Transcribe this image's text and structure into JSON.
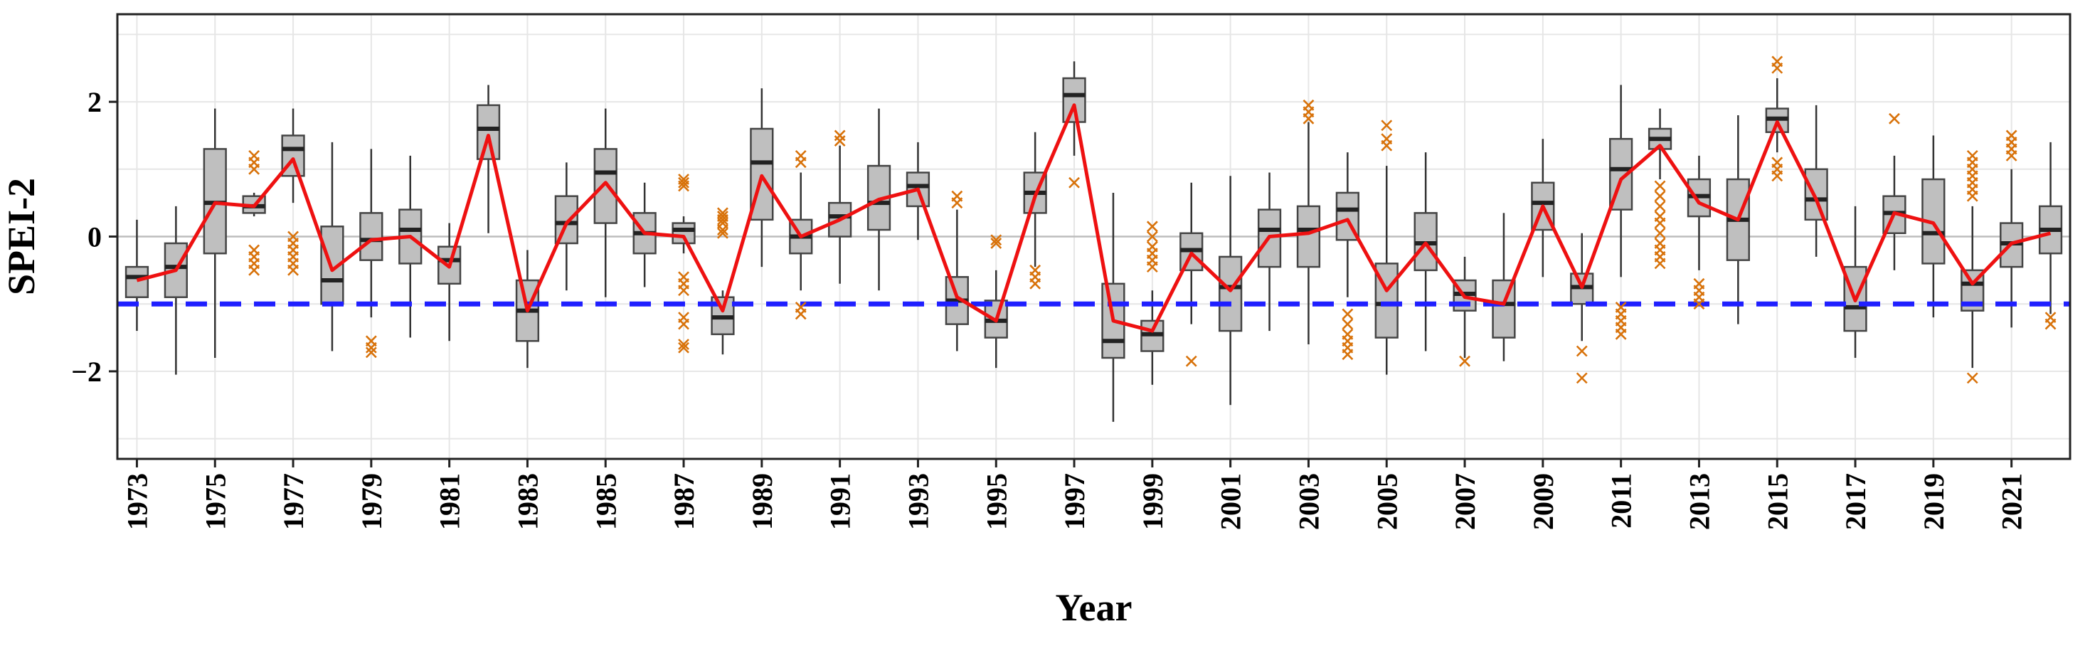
{
  "chart_data": {
    "type": "boxplot",
    "title": "",
    "xlabel": "Year",
    "ylabel": "SPEI-2",
    "ylim": [
      -3.3,
      3.3
    ],
    "yticks": [
      -2,
      0,
      2
    ],
    "ytick_labels": [
      "−2",
      "0",
      "2"
    ],
    "xticks": [
      1973,
      1975,
      1977,
      1979,
      1981,
      1983,
      1985,
      1987,
      1989,
      1991,
      1993,
      1995,
      1997,
      1999,
      2001,
      2003,
      2005,
      2007,
      2009,
      2011,
      2013,
      2015,
      2017,
      2019,
      2021
    ],
    "reference_line": {
      "value": -1,
      "style": "dashed",
      "color": "#1f1fff"
    },
    "colors": {
      "box_fill": "#bfbfbf",
      "box_edge": "#444444",
      "median": "#222222",
      "whisker": "#333333",
      "outlier": "#d8720a",
      "mean_line": "#ee1111",
      "grid": "#e6e6e6",
      "zero_line": "#bdbdbd"
    },
    "series": [
      {
        "name": "boxes",
        "values": [
          {
            "year": 1973,
            "min": -1.4,
            "q1": -0.9,
            "median": -0.6,
            "q3": -0.45,
            "max": 0.25,
            "outliers": []
          },
          {
            "year": 1974,
            "min": -2.05,
            "q1": -0.9,
            "median": -0.45,
            "q3": -0.1,
            "max": 0.45,
            "outliers": []
          },
          {
            "year": 1975,
            "min": -1.8,
            "q1": -0.25,
            "median": 0.5,
            "q3": 1.3,
            "max": 1.9,
            "outliers": []
          },
          {
            "year": 1976,
            "min": 0.3,
            "q1": 0.35,
            "median": 0.45,
            "q3": 0.6,
            "max": 0.65,
            "outliers": [
              1.2,
              1.1,
              1.0,
              -0.2,
              -0.3,
              -0.4,
              -0.5
            ]
          },
          {
            "year": 1977,
            "min": 0.5,
            "q1": 0.9,
            "median": 1.3,
            "q3": 1.5,
            "max": 1.9,
            "outliers": [
              0.0,
              -0.1,
              -0.2,
              -0.3,
              -0.4,
              -0.5
            ]
          },
          {
            "year": 1978,
            "min": -1.7,
            "q1": -1.0,
            "median": -0.65,
            "q3": 0.15,
            "max": 1.4,
            "outliers": []
          },
          {
            "year": 1979,
            "min": -1.2,
            "q1": -0.35,
            "median": -0.05,
            "q3": 0.35,
            "max": 1.3,
            "outliers": [
              -1.55,
              -1.65,
              -1.72
            ]
          },
          {
            "year": 1980,
            "min": -1.5,
            "q1": -0.4,
            "median": 0.1,
            "q3": 0.4,
            "max": 1.2,
            "outliers": []
          },
          {
            "year": 1981,
            "min": -1.55,
            "q1": -0.7,
            "median": -0.35,
            "q3": -0.15,
            "max": 0.2,
            "outliers": []
          },
          {
            "year": 1982,
            "min": 0.05,
            "q1": 1.15,
            "median": 1.6,
            "q3": 1.95,
            "max": 2.25,
            "outliers": []
          },
          {
            "year": 1983,
            "min": -1.95,
            "q1": -1.55,
            "median": -1.1,
            "q3": -0.65,
            "max": -0.2,
            "outliers": []
          },
          {
            "year": 1984,
            "min": -0.8,
            "q1": -0.1,
            "median": 0.2,
            "q3": 0.6,
            "max": 1.1,
            "outliers": []
          },
          {
            "year": 1985,
            "min": -0.9,
            "q1": 0.2,
            "median": 0.95,
            "q3": 1.3,
            "max": 1.9,
            "outliers": []
          },
          {
            "year": 1986,
            "min": -0.75,
            "q1": -0.25,
            "median": 0.05,
            "q3": 0.35,
            "max": 0.8,
            "outliers": []
          },
          {
            "year": 1987,
            "min": -0.25,
            "q1": -0.1,
            "median": 0.1,
            "q3": 0.2,
            "max": 0.3,
            "outliers": [
              0.85,
              0.8,
              0.75,
              -0.6,
              -0.7,
              -0.8,
              -1.2,
              -1.3,
              -1.6,
              -1.65
            ]
          },
          {
            "year": 1988,
            "min": -1.75,
            "q1": -1.45,
            "median": -1.2,
            "q3": -0.9,
            "max": -0.8,
            "outliers": [
              0.35,
              0.3,
              0.25,
              0.2,
              0.1,
              0.05
            ]
          },
          {
            "year": 1989,
            "min": -0.45,
            "q1": 0.25,
            "median": 1.1,
            "q3": 1.6,
            "max": 2.2,
            "outliers": []
          },
          {
            "year": 1990,
            "min": -0.8,
            "q1": -0.25,
            "median": 0.0,
            "q3": 0.25,
            "max": 0.95,
            "outliers": [
              1.2,
              1.1,
              -1.05,
              -1.15
            ]
          },
          {
            "year": 1991,
            "min": -0.7,
            "q1": 0.0,
            "median": 0.3,
            "q3": 0.5,
            "max": 1.35,
            "outliers": [
              1.5,
              1.42
            ]
          },
          {
            "year": 1992,
            "min": -0.8,
            "q1": 0.1,
            "median": 0.5,
            "q3": 1.05,
            "max": 1.9,
            "outliers": []
          },
          {
            "year": 1993,
            "min": -0.05,
            "q1": 0.45,
            "median": 0.75,
            "q3": 0.95,
            "max": 1.4,
            "outliers": []
          },
          {
            "year": 1994,
            "min": -1.7,
            "q1": -1.3,
            "median": -0.95,
            "q3": -0.6,
            "max": 0.4,
            "outliers": [
              0.6,
              0.5
            ]
          },
          {
            "year": 1995,
            "min": -1.95,
            "q1": -1.5,
            "median": -1.25,
            "q3": -0.95,
            "max": -0.5,
            "outliers": [
              -0.05,
              -0.1
            ]
          },
          {
            "year": 1996,
            "min": -0.45,
            "q1": 0.35,
            "median": 0.65,
            "q3": 0.95,
            "max": 1.55,
            "outliers": [
              -0.5,
              -0.6,
              -0.7
            ]
          },
          {
            "year": 1997,
            "min": 1.2,
            "q1": 1.7,
            "median": 2.1,
            "q3": 2.35,
            "max": 2.6,
            "outliers": [
              0.8
            ]
          },
          {
            "year": 1998,
            "min": -2.75,
            "q1": -1.8,
            "median": -1.55,
            "q3": -0.7,
            "max": 0.65,
            "outliers": []
          },
          {
            "year": 1999,
            "min": -2.2,
            "q1": -1.7,
            "median": -1.45,
            "q3": -1.25,
            "max": -0.8,
            "outliers": [
              0.15,
              0.0,
              -0.15,
              -0.25,
              -0.35,
              -0.45
            ]
          },
          {
            "year": 2000,
            "min": -1.3,
            "q1": -0.5,
            "median": -0.2,
            "q3": 0.05,
            "max": 0.8,
            "outliers": [
              -1.85
            ]
          },
          {
            "year": 2001,
            "min": -2.5,
            "q1": -1.4,
            "median": -0.75,
            "q3": -0.3,
            "max": 0.9,
            "outliers": []
          },
          {
            "year": 2002,
            "min": -1.4,
            "q1": -0.45,
            "median": 0.1,
            "q3": 0.4,
            "max": 0.95,
            "outliers": []
          },
          {
            "year": 2003,
            "min": -1.6,
            "q1": -0.45,
            "median": 0.1,
            "q3": 0.45,
            "max": 1.7,
            "outliers": [
              1.95,
              1.85,
              1.75
            ]
          },
          {
            "year": 2004,
            "min": -0.9,
            "q1": -0.05,
            "median": 0.4,
            "q3": 0.65,
            "max": 1.25,
            "outliers": [
              -1.15,
              -1.3,
              -1.45,
              -1.55,
              -1.65,
              -1.75
            ]
          },
          {
            "year": 2005,
            "min": -2.05,
            "q1": -1.5,
            "median": -1.0,
            "q3": -0.4,
            "max": 1.05,
            "outliers": [
              1.65,
              1.45,
              1.35
            ]
          },
          {
            "year": 2006,
            "min": -1.7,
            "q1": -0.5,
            "median": -0.1,
            "q3": 0.35,
            "max": 1.25,
            "outliers": []
          },
          {
            "year": 2007,
            "min": -1.8,
            "q1": -1.1,
            "median": -0.85,
            "q3": -0.65,
            "max": -0.3,
            "outliers": [
              -1.85
            ]
          },
          {
            "year": 2008,
            "min": -1.85,
            "q1": -1.5,
            "median": -1.0,
            "q3": -0.65,
            "max": 0.35,
            "outliers": []
          },
          {
            "year": 2009,
            "min": -0.6,
            "q1": 0.1,
            "median": 0.5,
            "q3": 0.8,
            "max": 1.45,
            "outliers": []
          },
          {
            "year": 2010,
            "min": -1.55,
            "q1": -1.0,
            "median": -0.75,
            "q3": -0.55,
            "max": 0.05,
            "outliers": [
              -1.7,
              -2.1
            ]
          },
          {
            "year": 2011,
            "min": -0.6,
            "q1": 0.4,
            "median": 1.0,
            "q3": 1.45,
            "max": 2.25,
            "outliers": [
              -1.05,
              -1.15,
              -1.25,
              -1.35,
              -1.45
            ]
          },
          {
            "year": 2012,
            "min": 0.85,
            "q1": 1.3,
            "median": 1.45,
            "q3": 1.6,
            "max": 1.9,
            "outliers": [
              0.75,
              0.6,
              0.45,
              0.3,
              0.2,
              0.05,
              -0.1,
              -0.2,
              -0.3,
              -0.4
            ]
          },
          {
            "year": 2013,
            "min": -0.5,
            "q1": 0.3,
            "median": 0.6,
            "q3": 0.85,
            "max": 1.2,
            "outliers": [
              -0.7,
              -0.8,
              -0.9,
              -1.0
            ]
          },
          {
            "year": 2014,
            "min": -1.3,
            "q1": -0.35,
            "median": 0.25,
            "q3": 0.85,
            "max": 1.8,
            "outliers": []
          },
          {
            "year": 2015,
            "min": 1.25,
            "q1": 1.55,
            "median": 1.75,
            "q3": 1.9,
            "max": 2.35,
            "outliers": [
              2.6,
              2.5,
              1.1,
              1.0,
              0.9
            ]
          },
          {
            "year": 2016,
            "min": -0.3,
            "q1": 0.25,
            "median": 0.55,
            "q3": 1.0,
            "max": 1.95,
            "outliers": []
          },
          {
            "year": 2017,
            "min": -1.8,
            "q1": -1.4,
            "median": -1.05,
            "q3": -0.45,
            "max": 0.45,
            "outliers": []
          },
          {
            "year": 2018,
            "min": -0.5,
            "q1": 0.05,
            "median": 0.35,
            "q3": 0.6,
            "max": 1.2,
            "outliers": [
              1.75
            ]
          },
          {
            "year": 2019,
            "min": -1.2,
            "q1": -0.4,
            "median": 0.05,
            "q3": 0.85,
            "max": 1.5,
            "outliers": []
          },
          {
            "year": 2020,
            "min": -1.95,
            "q1": -1.1,
            "median": -0.7,
            "q3": -0.5,
            "max": 0.45,
            "outliers": [
              1.2,
              1.1,
              1.0,
              0.9,
              0.8,
              0.7,
              0.6,
              -2.1
            ]
          },
          {
            "year": 2021,
            "min": -1.35,
            "q1": -0.45,
            "median": -0.1,
            "q3": 0.2,
            "max": 1.0,
            "outliers": [
              1.5,
              1.4,
              1.3,
              1.2
            ]
          },
          {
            "year": 2022,
            "min": -1.15,
            "q1": -0.25,
            "median": 0.1,
            "q3": 0.45,
            "max": 1.4,
            "outliers": [
              -1.2,
              -1.3
            ]
          }
        ]
      },
      {
        "name": "mean",
        "values": [
          -0.65,
          -0.5,
          0.5,
          0.45,
          1.15,
          -0.5,
          -0.05,
          0.0,
          -0.45,
          1.5,
          -1.1,
          0.2,
          0.8,
          0.05,
          0.0,
          -1.1,
          0.9,
          0.0,
          0.25,
          0.55,
          0.7,
          -0.9,
          -1.25,
          0.6,
          1.95,
          -1.25,
          -1.4,
          -0.25,
          -0.8,
          0.0,
          0.05,
          0.25,
          -0.8,
          -0.1,
          -0.9,
          -1.0,
          0.45,
          -0.75,
          0.85,
          1.35,
          0.5,
          0.25,
          1.7,
          0.55,
          -0.95,
          0.35,
          0.2,
          -0.7,
          -0.1,
          0.05
        ]
      }
    ]
  }
}
